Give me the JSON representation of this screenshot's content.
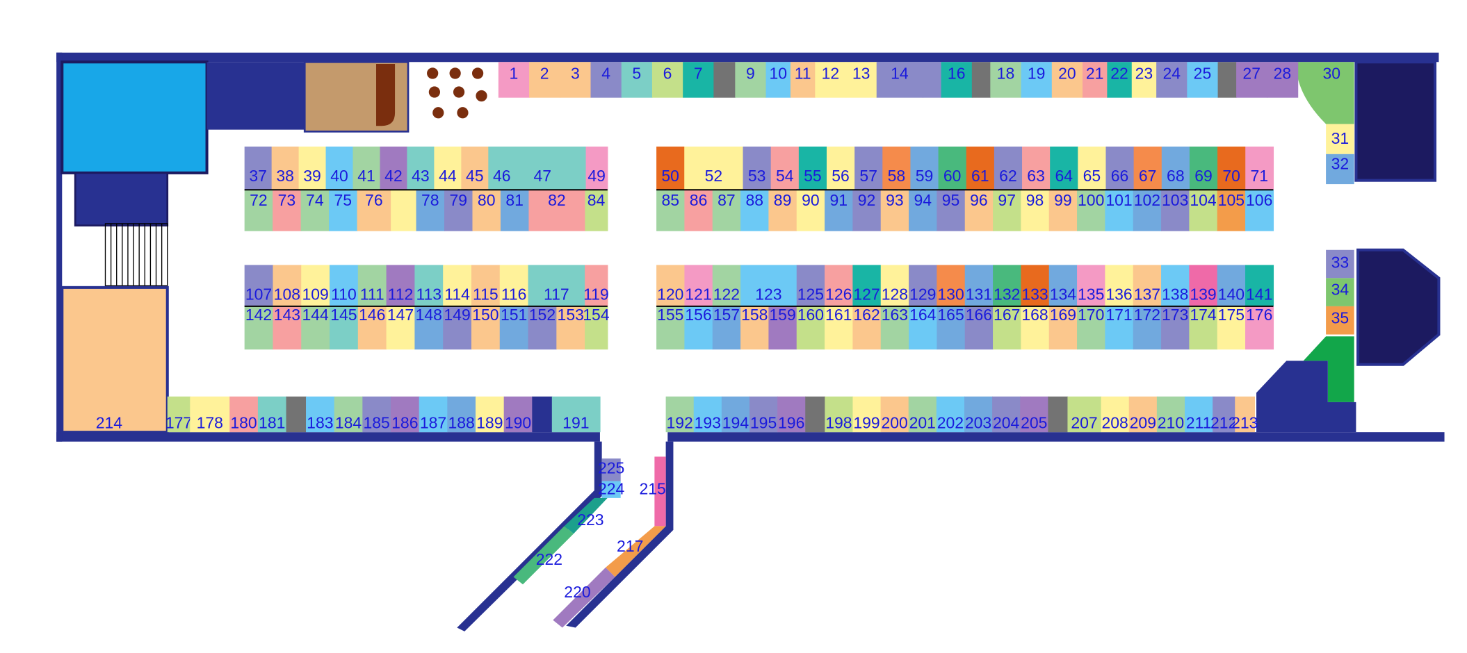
{
  "palette": [
    "#f49ac4",
    "#fbc78d",
    "#8a8ac8",
    "#7ccfc6",
    "#c4e08a",
    "#19b5a5",
    "#737373",
    "#a2d4a2",
    "#6cc9f5",
    "#fff29a",
    "#f7a0a0",
    "#71a9de",
    "#e86a1e",
    "#49b97d",
    "#f58b4b",
    "#a07ac0",
    "#ef6aa8",
    "#7ec66e",
    "#f39c4a",
    "#1ca08c"
  ],
  "colors": {
    "wall": "#283191",
    "wall_dark": "#1c1a60",
    "floor": "#ffffff",
    "label": "#1a1adc",
    "restroom": "#18a7e8",
    "cafe": "#c49a6c",
    "anchor_left": "#fbc78d",
    "furniture": "#7a2e0e",
    "green_block": "#12a64a"
  },
  "rows": [
    {
      "name": "top-row",
      "y": "T",
      "stalls": [
        {
          "n": "1",
          "c": 0,
          "w": 1
        },
        {
          "n": "2",
          "c": 1,
          "w": 1
        },
        {
          "n": "3",
          "c": 1,
          "w": 1
        },
        {
          "n": "4",
          "c": 2,
          "w": 1
        },
        {
          "n": "5",
          "c": 3,
          "w": 1
        },
        {
          "n": "6",
          "c": 4,
          "w": 1
        },
        {
          "n": "7",
          "c": 5,
          "w": 1
        },
        {
          "n": "",
          "c": 6,
          "w": 0.7
        },
        {
          "n": "9",
          "c": 7,
          "w": 1
        },
        {
          "n": "10",
          "c": 8,
          "w": 0.8
        },
        {
          "n": "11",
          "c": 1,
          "w": 0.8
        },
        {
          "n": "12",
          "c": 9,
          "w": 1
        },
        {
          "n": "13",
          "c": 9,
          "w": 1
        },
        {
          "n": "14",
          "c": 2,
          "w": 1.5
        },
        {
          "n": "",
          "c": 2,
          "w": 0.6
        },
        {
          "n": "16",
          "c": 5,
          "w": 1
        },
        {
          "n": "",
          "c": 6,
          "w": 0.6
        },
        {
          "n": "18",
          "c": 7,
          "w": 1
        },
        {
          "n": "19",
          "c": 8,
          "w": 1
        },
        {
          "n": "20",
          "c": 1,
          "w": 1
        },
        {
          "n": "21",
          "c": 10,
          "w": 0.8
        },
        {
          "n": "22",
          "c": 5,
          "w": 0.8
        },
        {
          "n": "23",
          "c": 9,
          "w": 0.8
        },
        {
          "n": "24",
          "c": 2,
          "w": 1
        },
        {
          "n": "25",
          "c": 8,
          "w": 1
        },
        {
          "n": "",
          "c": 6,
          "w": 0.6
        },
        {
          "n": "27",
          "c": 15,
          "w": 1
        },
        {
          "n": "28",
          "c": 15,
          "w": 1
        }
      ]
    },
    {
      "name": "block-a-upper",
      "y": "A1",
      "stalls": [
        {
          "n": "37",
          "c": 2
        },
        {
          "n": "38",
          "c": 1
        },
        {
          "n": "39",
          "c": 9
        },
        {
          "n": "40",
          "c": 8
        },
        {
          "n": "41",
          "c": 7
        },
        {
          "n": "42",
          "c": 15
        },
        {
          "n": "43",
          "c": 3
        },
        {
          "n": "44",
          "c": 9
        },
        {
          "n": "45",
          "c": 1
        },
        {
          "n": "46",
          "c": 3
        },
        {
          "n": "47",
          "c": 3,
          "w": 2
        },
        {
          "n": "",
          "c": 3,
          "w": 0.6
        },
        {
          "n": "49",
          "c": 0,
          "w": 0.8
        }
      ]
    },
    {
      "name": "block-a-lower",
      "y": "A2",
      "stalls": [
        {
          "n": "72",
          "c": 7
        },
        {
          "n": "73",
          "c": 10
        },
        {
          "n": "74",
          "c": 7
        },
        {
          "n": "75",
          "c": 8
        },
        {
          "n": "76",
          "c": 1,
          "w": 1.2
        },
        {
          "n": "",
          "c": 9,
          "w": 0.9
        },
        {
          "n": "78",
          "c": 11
        },
        {
          "n": "79",
          "c": 2
        },
        {
          "n": "80",
          "c": 1
        },
        {
          "n": "81",
          "c": 11
        },
        {
          "n": "82",
          "c": 10,
          "w": 2
        },
        {
          "n": "84",
          "c": 4,
          "w": 0.8
        }
      ]
    },
    {
      "name": "block-b-upper",
      "y": "B1",
      "stalls": [
        {
          "n": "50",
          "c": 12
        },
        {
          "n": "52",
          "c": 9,
          "w": 2.1
        },
        {
          "n": "53",
          "c": 2
        },
        {
          "n": "54",
          "c": 10
        },
        {
          "n": "55",
          "c": 5
        },
        {
          "n": "56",
          "c": 9
        },
        {
          "n": "57",
          "c": 2
        },
        {
          "n": "58",
          "c": 14
        },
        {
          "n": "59",
          "c": 11
        },
        {
          "n": "60",
          "c": 13
        },
        {
          "n": "61",
          "c": 12
        },
        {
          "n": "62",
          "c": 2
        },
        {
          "n": "63",
          "c": 10
        },
        {
          "n": "64",
          "c": 5
        },
        {
          "n": "65",
          "c": 9
        },
        {
          "n": "66",
          "c": 2
        },
        {
          "n": "67",
          "c": 14
        },
        {
          "n": "68",
          "c": 11
        },
        {
          "n": "69",
          "c": 13
        },
        {
          "n": "70",
          "c": 12
        },
        {
          "n": "71",
          "c": 0
        }
      ]
    },
    {
      "name": "block-b-lower",
      "y": "B2",
      "stalls": [
        {
          "n": "85",
          "c": 7
        },
        {
          "n": "86",
          "c": 10
        },
        {
          "n": "87",
          "c": 7
        },
        {
          "n": "88",
          "c": 8
        },
        {
          "n": "89",
          "c": 1
        },
        {
          "n": "90",
          "c": 9
        },
        {
          "n": "91",
          "c": 11
        },
        {
          "n": "92",
          "c": 2
        },
        {
          "n": "93",
          "c": 1
        },
        {
          "n": "94",
          "c": 11
        },
        {
          "n": "95",
          "c": 2
        },
        {
          "n": "96",
          "c": 1
        },
        {
          "n": "97",
          "c": 4
        },
        {
          "n": "98",
          "c": 9
        },
        {
          "n": "99",
          "c": 1
        },
        {
          "n": "100",
          "c": 7
        },
        {
          "n": "101",
          "c": 8
        },
        {
          "n": "102",
          "c": 11
        },
        {
          "n": "103",
          "c": 2
        },
        {
          "n": "104",
          "c": 4
        },
        {
          "n": "105",
          "c": 18
        },
        {
          "n": "106",
          "c": 8
        }
      ]
    },
    {
      "name": "block-c-upper",
      "y": "C1",
      "stalls": [
        {
          "n": "107",
          "c": 2
        },
        {
          "n": "108",
          "c": 1
        },
        {
          "n": "109",
          "c": 9
        },
        {
          "n": "110",
          "c": 8
        },
        {
          "n": "111",
          "c": 7
        },
        {
          "n": "112",
          "c": 15
        },
        {
          "n": "113",
          "c": 3
        },
        {
          "n": "114",
          "c": 9
        },
        {
          "n": "115",
          "c": 1
        },
        {
          "n": "116",
          "c": 9
        },
        {
          "n": "117",
          "c": 3,
          "w": 2
        },
        {
          "n": "119",
          "c": 10,
          "w": 0.8
        }
      ]
    },
    {
      "name": "block-c-lower",
      "y": "C2",
      "stalls": [
        {
          "n": "142",
          "c": 7
        },
        {
          "n": "143",
          "c": 10
        },
        {
          "n": "144",
          "c": 7
        },
        {
          "n": "145",
          "c": 3
        },
        {
          "n": "146",
          "c": 1
        },
        {
          "n": "147",
          "c": 9
        },
        {
          "n": "148",
          "c": 11
        },
        {
          "n": "149",
          "c": 2
        },
        {
          "n": "150",
          "c": 1
        },
        {
          "n": "151",
          "c": 11
        },
        {
          "n": "152",
          "c": 2
        },
        {
          "n": "153",
          "c": 1
        },
        {
          "n": "154",
          "c": 4,
          "w": 0.8
        }
      ]
    },
    {
      "name": "block-d-upper",
      "y": "D1",
      "stalls": [
        {
          "n": "120",
          "c": 1
        },
        {
          "n": "121",
          "c": 0
        },
        {
          "n": "122",
          "c": 7
        },
        {
          "n": "123",
          "c": 8,
          "w": 2
        },
        {
          "n": "125",
          "c": 2
        },
        {
          "n": "126",
          "c": 10
        },
        {
          "n": "127",
          "c": 5
        },
        {
          "n": "128",
          "c": 9
        },
        {
          "n": "129",
          "c": 2
        },
        {
          "n": "130",
          "c": 14
        },
        {
          "n": "131",
          "c": 11
        },
        {
          "n": "132",
          "c": 13
        },
        {
          "n": "133",
          "c": 12
        },
        {
          "n": "134",
          "c": 11
        },
        {
          "n": "135",
          "c": 0
        },
        {
          "n": "136",
          "c": 9
        },
        {
          "n": "137",
          "c": 1
        },
        {
          "n": "138",
          "c": 8
        },
        {
          "n": "139",
          "c": 16
        },
        {
          "n": "140",
          "c": 11
        },
        {
          "n": "141",
          "c": 5
        }
      ]
    },
    {
      "name": "block-d-lower",
      "y": "D2",
      "stalls": [
        {
          "n": "155",
          "c": 7
        },
        {
          "n": "156",
          "c": 8
        },
        {
          "n": "157",
          "c": 11
        },
        {
          "n": "158",
          "c": 1
        },
        {
          "n": "159",
          "c": 15
        },
        {
          "n": "160",
          "c": 4
        },
        {
          "n": "161",
          "c": 9
        },
        {
          "n": "162",
          "c": 1
        },
        {
          "n": "163",
          "c": 7
        },
        {
          "n": "164",
          "c": 8
        },
        {
          "n": "165",
          "c": 11
        },
        {
          "n": "166",
          "c": 2
        },
        {
          "n": "167",
          "c": 4
        },
        {
          "n": "168",
          "c": 9
        },
        {
          "n": "169",
          "c": 1
        },
        {
          "n": "170",
          "c": 7
        },
        {
          "n": "171",
          "c": 8
        },
        {
          "n": "172",
          "c": 11
        },
        {
          "n": "173",
          "c": 2
        },
        {
          "n": "174",
          "c": 4
        },
        {
          "n": "175",
          "c": 9
        },
        {
          "n": "176",
          "c": 0
        }
      ]
    },
    {
      "name": "bottom-left-row",
      "y": "BL",
      "stalls": [
        {
          "n": "177",
          "c": 4,
          "w": 0.8
        },
        {
          "n": "178",
          "c": 9,
          "w": 1.4
        },
        {
          "n": "180",
          "c": 10
        },
        {
          "n": "181",
          "c": 3
        },
        {
          "n": "",
          "c": 6,
          "w": 0.7
        },
        {
          "n": "183",
          "c": 8
        },
        {
          "n": "184",
          "c": 7
        },
        {
          "n": "185",
          "c": 2
        },
        {
          "n": "186",
          "c": 15
        },
        {
          "n": "187",
          "c": 8
        },
        {
          "n": "188",
          "c": 11
        },
        {
          "n": "189",
          "c": 9
        },
        {
          "n": "190",
          "c": 15
        },
        {
          "n": "",
          "c": 20,
          "w": 0.7
        },
        {
          "n": "191",
          "c": 3,
          "w": 1.7
        }
      ]
    },
    {
      "name": "bottom-right-row",
      "y": "BR",
      "stalls": [
        {
          "n": "192",
          "c": 7
        },
        {
          "n": "193",
          "c": 8
        },
        {
          "n": "194",
          "c": 11
        },
        {
          "n": "195",
          "c": 2
        },
        {
          "n": "196",
          "c": 15
        },
        {
          "n": "",
          "c": 6,
          "w": 0.7
        },
        {
          "n": "198",
          "c": 4
        },
        {
          "n": "199",
          "c": 9
        },
        {
          "n": "200",
          "c": 1
        },
        {
          "n": "201",
          "c": 7
        },
        {
          "n": "202",
          "c": 8
        },
        {
          "n": "203",
          "c": 11
        },
        {
          "n": "204",
          "c": 2
        },
        {
          "n": "205",
          "c": 15
        },
        {
          "n": "",
          "c": 6,
          "w": 0.7
        },
        {
          "n": "207",
          "c": 4,
          "w": 1.2
        },
        {
          "n": "208",
          "c": 9
        },
        {
          "n": "209",
          "c": 1
        },
        {
          "n": "210",
          "c": 7
        },
        {
          "n": "211",
          "c": 8
        },
        {
          "n": "212",
          "c": 2,
          "w": 0.8
        },
        {
          "n": "213",
          "c": 1,
          "w": 0.7
        }
      ]
    }
  ],
  "singles": [
    {
      "n": "30",
      "c": 17
    },
    {
      "n": "31",
      "c": 9
    },
    {
      "n": "32",
      "c": 11
    },
    {
      "n": "33",
      "c": 2
    },
    {
      "n": "34",
      "c": 17
    },
    {
      "n": "35",
      "c": 18
    },
    {
      "n": "214",
      "c": 1
    },
    {
      "n": "215",
      "c": 16
    },
    {
      "n": "217",
      "c": 18
    },
    {
      "n": "220",
      "c": 2
    },
    {
      "n": "222",
      "c": 13
    },
    {
      "n": "223",
      "c": 19
    },
    {
      "n": "224",
      "c": 8
    },
    {
      "n": "225",
      "c": 2
    }
  ]
}
